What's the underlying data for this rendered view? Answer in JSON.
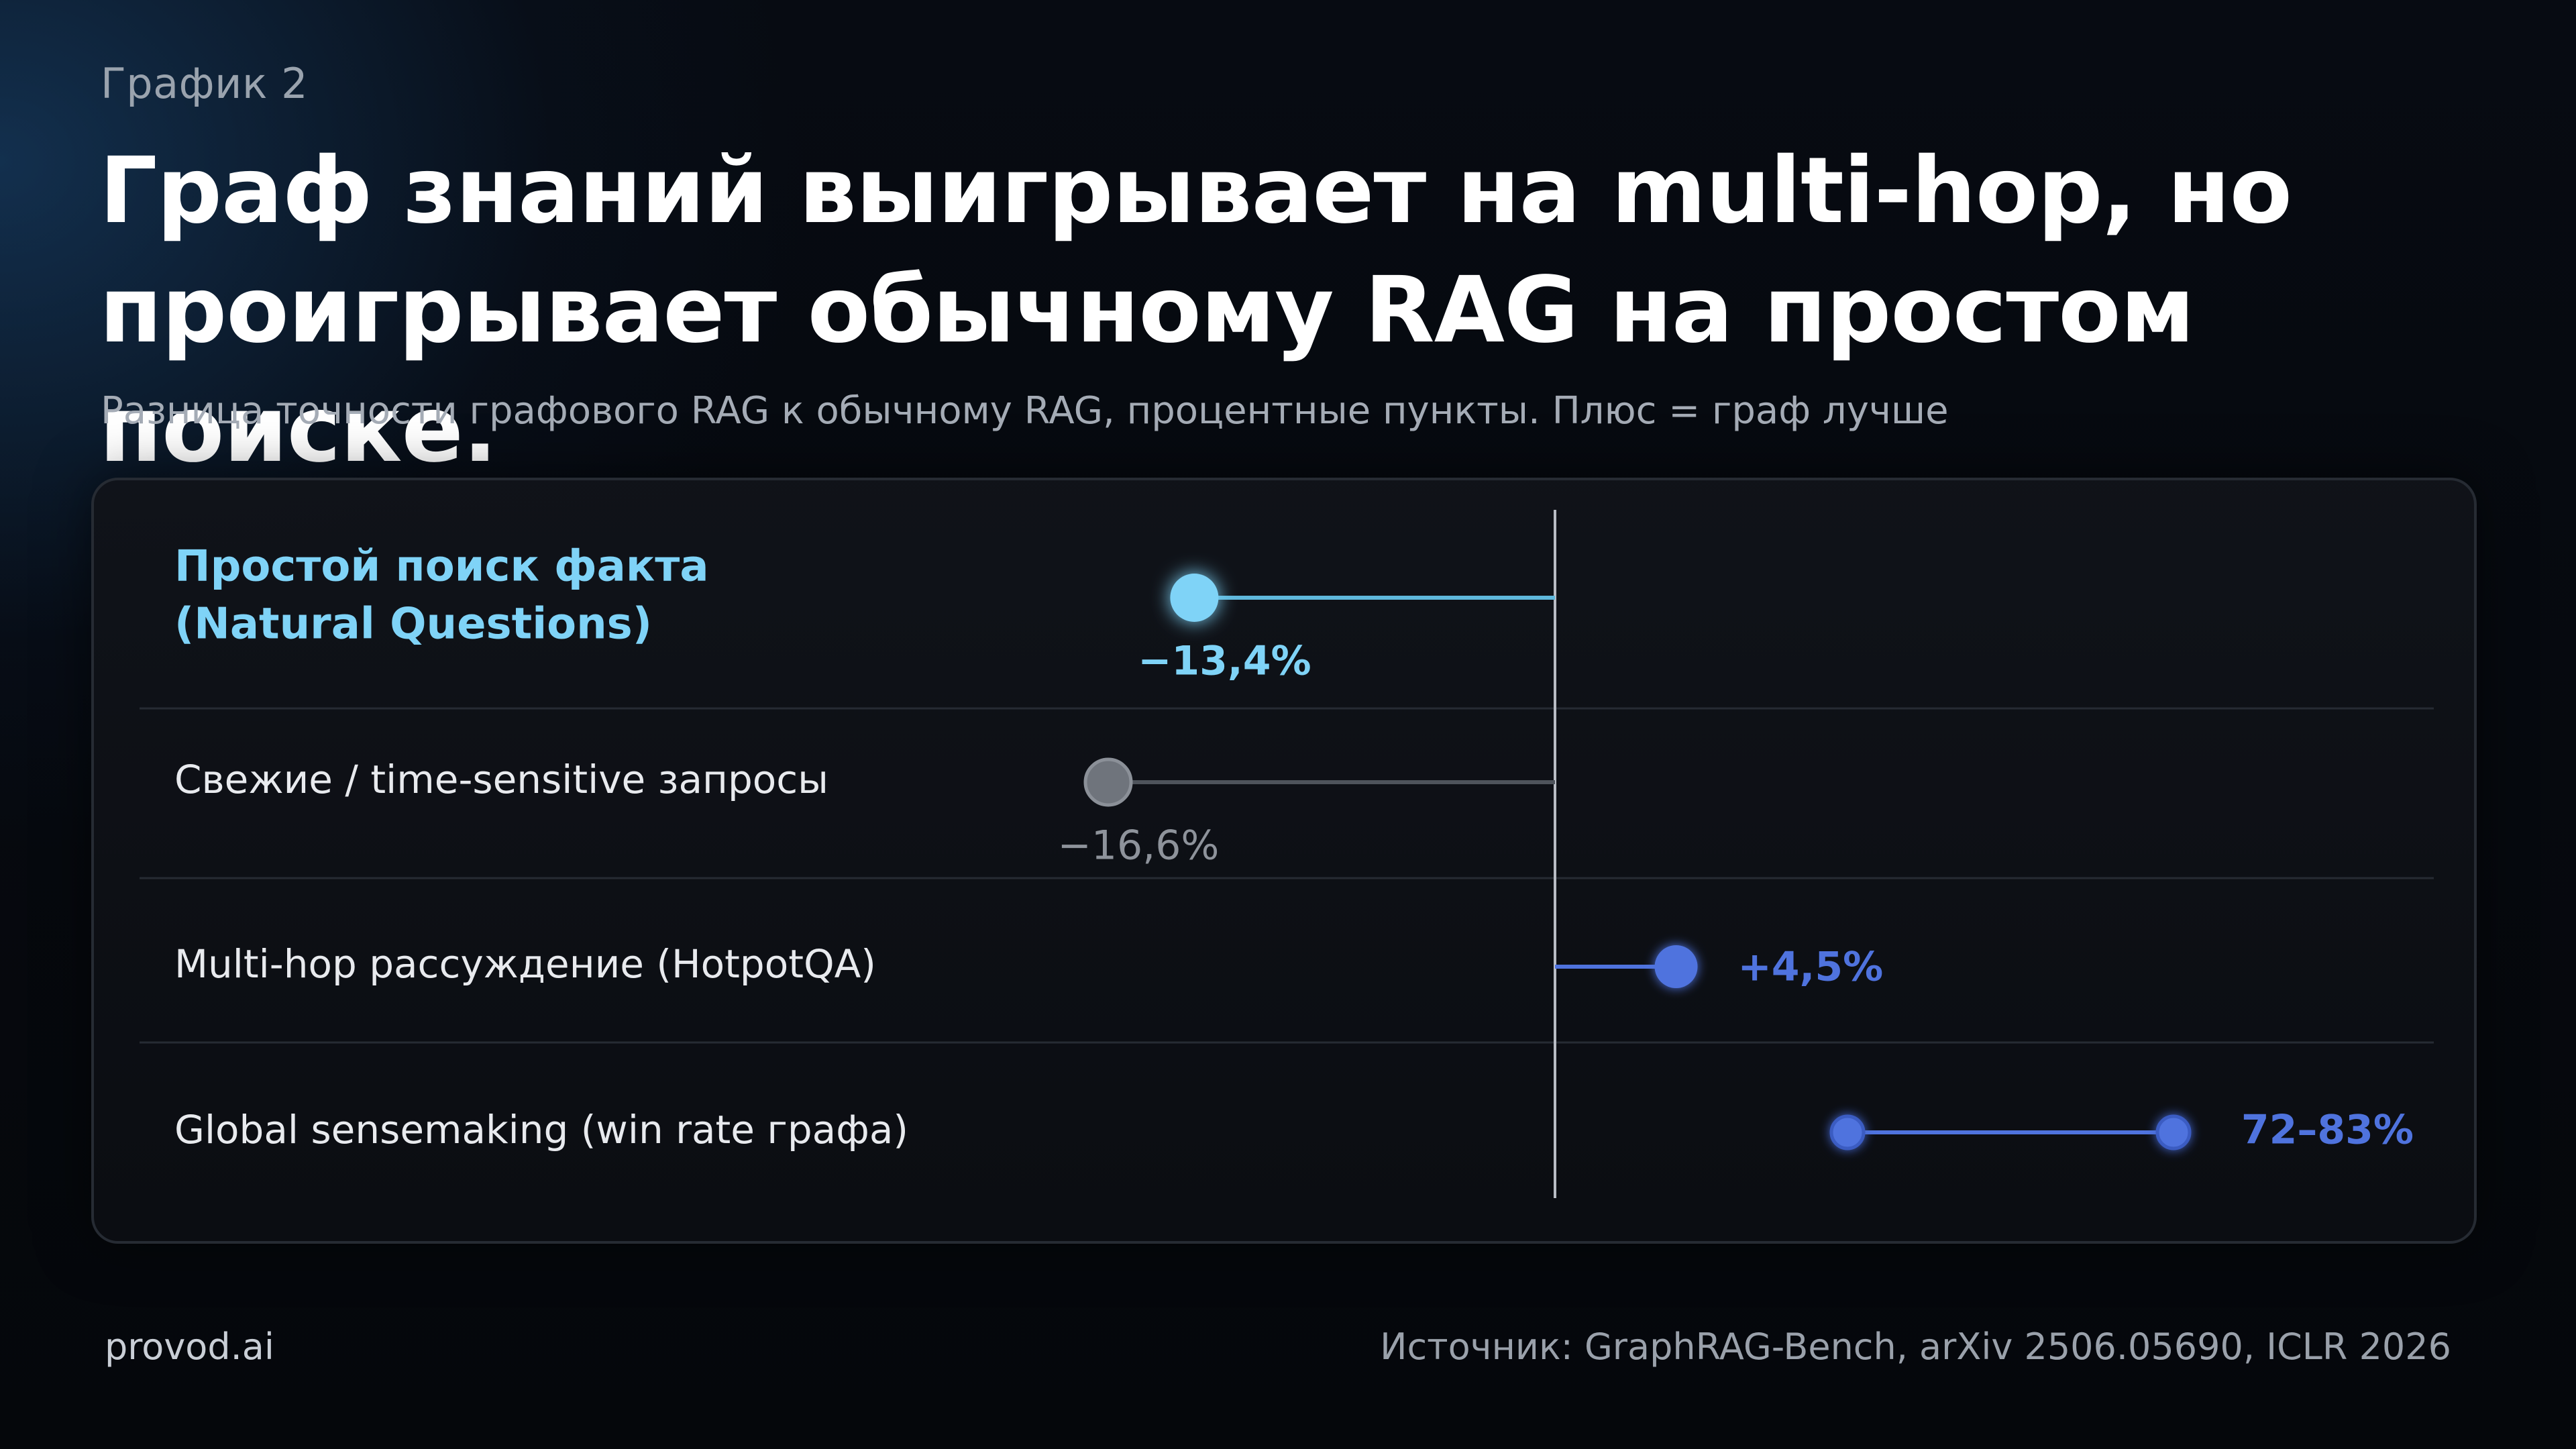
{
  "header": {
    "kicker": "График 2",
    "title_line1": "Граф знаний выигрывает на multi-hop, но",
    "title_line2": "проигрывает обычному RAG на простом поиске.",
    "subtitle": "Разница точности графового RAG к обычному RAG, процентные пункты. Плюс = граф лучше"
  },
  "footer": {
    "brand": "provod.ai",
    "source": "Источник: GraphRAG-Bench, arXiv 2506.05690, ICLR 2026"
  },
  "colors": {
    "highlight": "#7fd3f7",
    "muted": "#6f747c",
    "positive": "#4f73de",
    "axis": "#b8bcc4",
    "divider": "#262b33"
  },
  "chart_data": {
    "type": "dot",
    "title": "Граф знаний выигрывает на multi-hop, но проигрывает обычному RAG на простом поиске.",
    "subtitle": "Разница точности графового RAG к обычному RAG, процентные пункты. Плюс = граф лучше",
    "zero_line": true,
    "rows": [
      {
        "label_lines": [
          "Простой поиск факта",
          "(Natural Questions)"
        ],
        "value": -13.4,
        "value_label": "−13,4%",
        "style": "highlight"
      },
      {
        "label_lines": [
          "Свежие / time-sensitive запросы"
        ],
        "value": -16.6,
        "value_label": "−16,6%",
        "style": "muted"
      },
      {
        "label_lines": [
          "Multi-hop рассуждение (HotpotQA)"
        ],
        "value": 4.5,
        "value_label": "+4,5%",
        "style": "positive"
      },
      {
        "label_lines": [
          "Global sensemaking (win rate графа)"
        ],
        "range": [
          72,
          83
        ],
        "value_label": "72–83%",
        "style": "positive-range"
      }
    ]
  }
}
